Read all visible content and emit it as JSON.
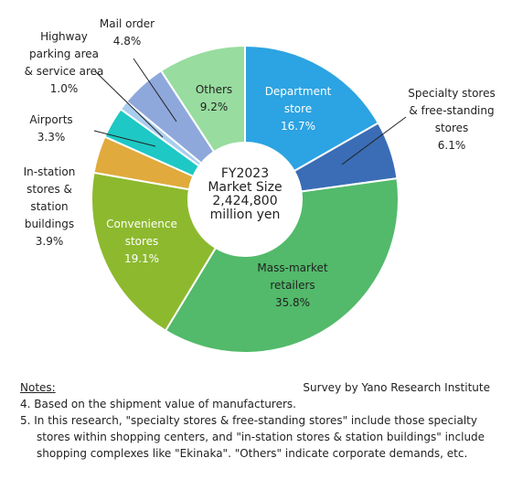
{
  "chart_data": {
    "type": "pie",
    "donut": true,
    "center_label": [
      "FY2023",
      "Market Size",
      "2,424,800",
      "million yen"
    ],
    "slices": [
      {
        "label": [
          "Department",
          "store"
        ],
        "value": 16.7,
        "value_label": "16.7%",
        "color": "#2ca3e2",
        "label_inside": true,
        "label_color": "#ffffff"
      },
      {
        "label": [
          "Specialty stores",
          "& free-standing",
          "stores"
        ],
        "value": 6.1,
        "value_label": "6.1%",
        "color": "#3a6db5",
        "label_inside": false
      },
      {
        "label": [
          "Mass-market",
          "retailers"
        ],
        "value": 35.8,
        "value_label": "35.8%",
        "color": "#52ba6a",
        "label_inside": true,
        "label_color": "#222222"
      },
      {
        "label": [
          "Convenience",
          "stores"
        ],
        "value": 19.1,
        "value_label": "19.1%",
        "color": "#8db92e",
        "label_inside": true,
        "label_color": "#ffffff"
      },
      {
        "label": [
          "In-station",
          "stores &",
          "station",
          "buildings"
        ],
        "value": 3.9,
        "value_label": "3.9%",
        "color": "#e0aa3c",
        "label_inside": false
      },
      {
        "label": [
          "Airports"
        ],
        "value": 3.3,
        "value_label": "3.3%",
        "color": "#1ec8c4",
        "label_inside": false
      },
      {
        "label": [
          "Highway",
          "parking area",
          "& service area"
        ],
        "value": 1.0,
        "value_label": "1.0%",
        "color": "#a9cdee",
        "label_inside": false
      },
      {
        "label": [
          "Mail order"
        ],
        "value": 4.8,
        "value_label": "4.8%",
        "color": "#8fa8dc",
        "label_inside": false
      },
      {
        "label": [
          "Others"
        ],
        "value": 9.2,
        "value_label": "9.2%",
        "color": "#98dc9f",
        "label_inside": true,
        "label_color": "#222222"
      }
    ]
  },
  "notes": {
    "title": "Notes:",
    "source": "Survey by Yano Research Institute",
    "items": [
      "4. Based on the shipment value of manufacturers.",
      "5. In this research, \"specialty stores & free-standing stores\" include those specialty stores within shopping centers, and \"in-station stores & station buildings\" include shopping complexes like \"Ekinaka\". \"Others\" indicate corporate demands, etc."
    ]
  }
}
